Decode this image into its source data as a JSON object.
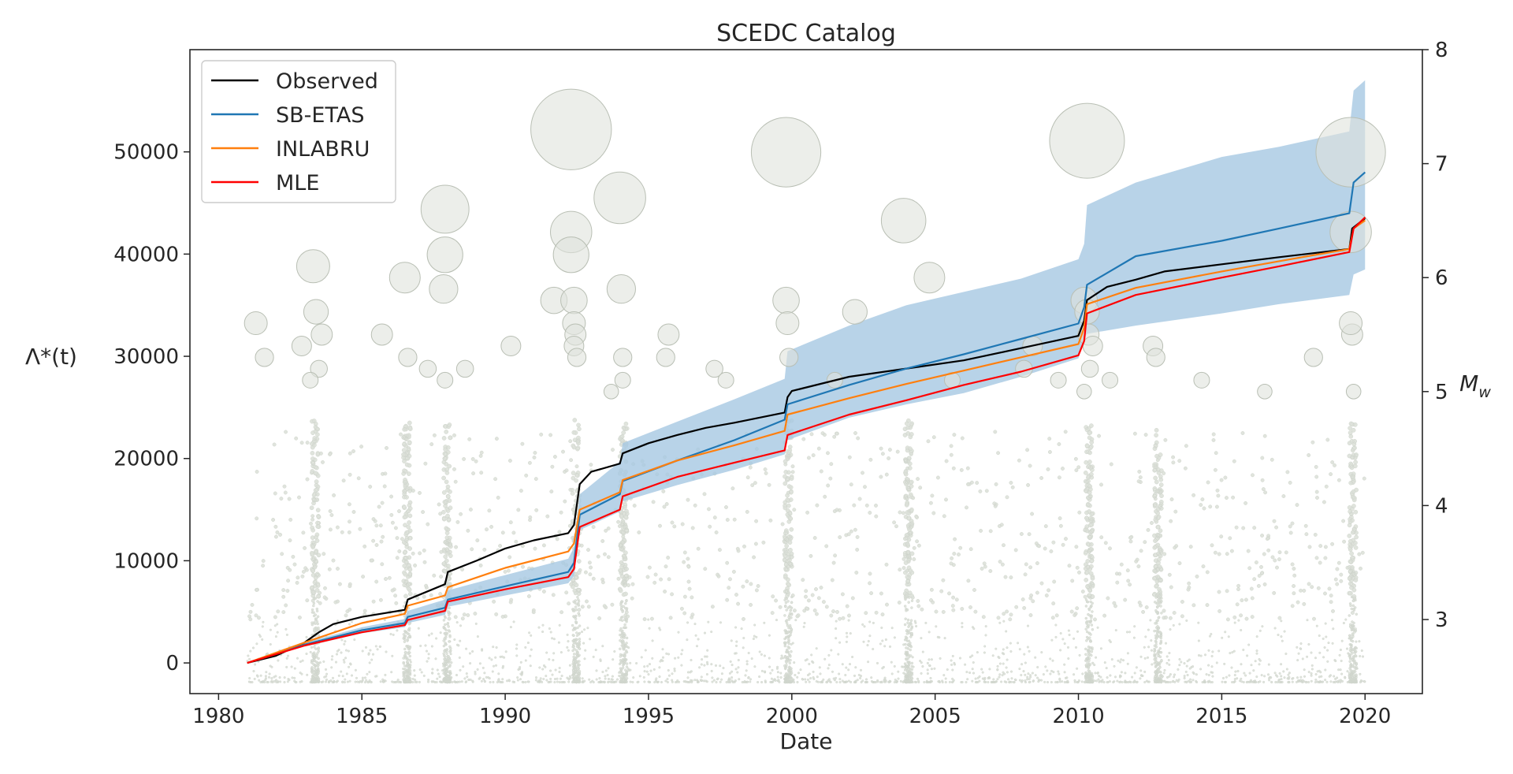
{
  "chart_data": {
    "type": "line",
    "title": "SCEDC Catalog",
    "xlabel": "Date",
    "ylabel": "Λ*(t)",
    "y2label": "M_w",
    "xlim": [
      1979.0,
      2022.0
    ],
    "ylim": [
      -3000,
      60000
    ],
    "y2lim": [
      2.35,
      8.0
    ],
    "x_ticks": [
      1980,
      1985,
      1990,
      1995,
      2000,
      2005,
      2010,
      2015,
      2020
    ],
    "x_tick_labels": [
      "1980",
      "1985",
      "1990",
      "1995",
      "2000",
      "2005",
      "2010",
      "2015",
      "2020"
    ],
    "y_ticks": [
      0,
      10000,
      20000,
      30000,
      40000,
      50000
    ],
    "y_tick_labels": [
      "0",
      "10000",
      "20000",
      "30000",
      "40000",
      "50000"
    ],
    "y2_ticks": [
      3,
      4,
      5,
      6,
      7,
      8
    ],
    "y2_tick_labels": [
      "3",
      "4",
      "5",
      "6",
      "7",
      "8"
    ],
    "legend_position": "upper-left",
    "colors": {
      "observed": "#000000",
      "sbetas": "#1f77b4",
      "inlabru": "#ff7f0e",
      "mle": "#ff0000",
      "band": "#a6c8e2",
      "quake_fill": "#c8cfc2",
      "quake_stroke": "#a9b3a4"
    },
    "series": [
      {
        "name": "Observed",
        "key": "observed",
        "x": [
          1981.0,
          1982.0,
          1983.0,
          1983.5,
          1984.0,
          1985.0,
          1986.5,
          1986.6,
          1987.9,
          1988.0,
          1989.0,
          1990.0,
          1991.0,
          1992.2,
          1992.4,
          1992.6,
          1993.0,
          1994.0,
          1994.1,
          1995.0,
          1996.0,
          1997.0,
          1998.0,
          1999.75,
          1999.85,
          2000.0,
          2002.0,
          2004.0,
          2006.0,
          2008.0,
          2010.0,
          2010.2,
          2010.3,
          2011.0,
          2012.0,
          2013.0,
          2015.0,
          2017.0,
          2019.45,
          2019.55,
          2020.0
        ],
        "values": [
          0,
          700,
          2000,
          3000,
          3800,
          4500,
          5200,
          6200,
          7700,
          8900,
          10000,
          11200,
          12000,
          12700,
          13500,
          17500,
          18700,
          19500,
          20500,
          21500,
          22300,
          23000,
          23500,
          24500,
          26000,
          26600,
          28000,
          28800,
          29600,
          30800,
          32000,
          33500,
          35500,
          36800,
          37500,
          38300,
          39000,
          39700,
          40500,
          42500,
          43500
        ]
      },
      {
        "name": "SB-ETAS",
        "key": "sbetas",
        "x": [
          1981.0,
          1983.0,
          1985.0,
          1986.5,
          1986.6,
          1987.9,
          1988.0,
          1990.0,
          1992.2,
          1992.4,
          1992.6,
          1994.0,
          1994.1,
          1996.0,
          1998.0,
          1999.75,
          1999.85,
          2002.0,
          2004.0,
          2006.0,
          2008.0,
          2010.0,
          2010.2,
          2010.3,
          2012.0,
          2015.0,
          2017.0,
          2019.45,
          2019.6,
          2020.0
        ],
        "values": [
          0,
          1800,
          3200,
          3900,
          4500,
          5400,
          6200,
          7500,
          8900,
          9800,
          14500,
          16500,
          17800,
          19800,
          21800,
          23800,
          25300,
          27200,
          28800,
          30200,
          31700,
          33200,
          34800,
          37000,
          39800,
          41300,
          42500,
          44000,
          47000,
          48000
        ]
      },
      {
        "name": "INLABRU",
        "key": "inlabru",
        "x": [
          1981.0,
          1983.0,
          1985.0,
          1986.5,
          1986.6,
          1987.9,
          1988.0,
          1990.0,
          1992.2,
          1992.4,
          1992.6,
          1994.0,
          1994.1,
          1996.0,
          1998.0,
          1999.75,
          1999.85,
          2002.0,
          2004.0,
          2006.0,
          2008.0,
          2010.0,
          2010.2,
          2010.3,
          2012.0,
          2015.0,
          2017.0,
          2019.45,
          2019.6,
          2020.0
        ],
        "values": [
          0,
          2000,
          3900,
          4800,
          5600,
          6600,
          7400,
          9300,
          10900,
          11700,
          15000,
          16700,
          17900,
          19800,
          21300,
          22700,
          24300,
          25900,
          27300,
          28600,
          29900,
          31200,
          32800,
          35100,
          36700,
          38300,
          39300,
          40500,
          42500,
          43300
        ]
      },
      {
        "name": "MLE",
        "key": "mle",
        "x": [
          1981.0,
          1983.0,
          1985.0,
          1986.5,
          1986.6,
          1987.9,
          1988.0,
          1990.0,
          1992.2,
          1992.4,
          1992.6,
          1994.0,
          1994.1,
          1996.0,
          1998.0,
          1999.75,
          1999.85,
          2002.0,
          2004.0,
          2006.0,
          2008.0,
          2010.0,
          2010.2,
          2010.3,
          2012.0,
          2015.0,
          2017.0,
          2019.45,
          2019.6,
          2020.0
        ],
        "values": [
          0,
          1700,
          3000,
          3700,
          4200,
          5100,
          6000,
          7200,
          8400,
          9200,
          13300,
          15000,
          16300,
          18200,
          19600,
          20800,
          22300,
          24300,
          25700,
          27200,
          28500,
          30100,
          31500,
          34200,
          36000,
          37700,
          38800,
          40200,
          42500,
          43600
        ]
      }
    ],
    "band": {
      "name": "SB-ETAS interval",
      "x": [
        1981.0,
        1983.0,
        1985.0,
        1986.5,
        1986.6,
        1987.9,
        1988.0,
        1990.0,
        1992.2,
        1992.4,
        1992.6,
        1994.0,
        1994.1,
        1996.0,
        1998.0,
        1999.75,
        1999.85,
        2002.0,
        2004.0,
        2006.0,
        2008.0,
        2010.0,
        2010.2,
        2010.3,
        2012.0,
        2015.0,
        2017.0,
        2019.45,
        2019.6,
        2020.0
      ],
      "upper": [
        0,
        2000,
        3500,
        4300,
        5100,
        6200,
        7100,
        8600,
        10200,
        11300,
        16500,
        19700,
        21500,
        23600,
        25800,
        27800,
        30500,
        33000,
        35000,
        36300,
        37600,
        39500,
        41000,
        44800,
        47000,
        49500,
        50500,
        52000,
        56000,
        57000
      ],
      "lower": [
        0,
        1600,
        2900,
        3500,
        3900,
        4700,
        5500,
        6600,
        7800,
        8500,
        13000,
        14800,
        15800,
        17400,
        18900,
        20400,
        21800,
        24000,
        25300,
        26400,
        28000,
        29800,
        31800,
        32200,
        33000,
        34200,
        35100,
        36000,
        38000,
        38500
      ]
    },
    "large_quakes": [
      {
        "year": 1981.3,
        "mag": 5.6
      },
      {
        "year": 1981.6,
        "mag": 5.3
      },
      {
        "year": 1982.9,
        "mag": 5.4
      },
      {
        "year": 1983.3,
        "mag": 6.1
      },
      {
        "year": 1983.4,
        "mag": 5.7
      },
      {
        "year": 1983.5,
        "mag": 5.2
      },
      {
        "year": 1983.2,
        "mag": 5.1
      },
      {
        "year": 1983.6,
        "mag": 5.5
      },
      {
        "year": 1985.7,
        "mag": 5.5
      },
      {
        "year": 1986.5,
        "mag": 6.0
      },
      {
        "year": 1986.6,
        "mag": 5.3
      },
      {
        "year": 1987.3,
        "mag": 5.2
      },
      {
        "year": 1987.9,
        "mag": 6.2
      },
      {
        "year": 1987.9,
        "mag": 6.6
      },
      {
        "year": 1987.85,
        "mag": 5.9
      },
      {
        "year": 1987.9,
        "mag": 5.1
      },
      {
        "year": 1988.6,
        "mag": 5.2
      },
      {
        "year": 1990.2,
        "mag": 5.4
      },
      {
        "year": 1991.7,
        "mag": 5.8
      },
      {
        "year": 1992.3,
        "mag": 7.3
      },
      {
        "year": 1992.3,
        "mag": 6.4
      },
      {
        "year": 1992.3,
        "mag": 6.2
      },
      {
        "year": 1992.4,
        "mag": 5.8
      },
      {
        "year": 1992.4,
        "mag": 5.6
      },
      {
        "year": 1992.45,
        "mag": 5.5
      },
      {
        "year": 1992.4,
        "mag": 5.4
      },
      {
        "year": 1992.5,
        "mag": 5.3
      },
      {
        "year": 1993.7,
        "mag": 5.0
      },
      {
        "year": 1994.0,
        "mag": 6.7
      },
      {
        "year": 1994.05,
        "mag": 5.9
      },
      {
        "year": 1994.1,
        "mag": 5.3
      },
      {
        "year": 1994.1,
        "mag": 5.1
      },
      {
        "year": 1995.7,
        "mag": 5.5
      },
      {
        "year": 1995.6,
        "mag": 5.3
      },
      {
        "year": 1997.3,
        "mag": 5.2
      },
      {
        "year": 1997.7,
        "mag": 5.1
      },
      {
        "year": 1999.8,
        "mag": 7.1
      },
      {
        "year": 1999.8,
        "mag": 5.8
      },
      {
        "year": 1999.85,
        "mag": 5.6
      },
      {
        "year": 1999.9,
        "mag": 5.3
      },
      {
        "year": 2001.5,
        "mag": 5.1
      },
      {
        "year": 2002.2,
        "mag": 5.7
      },
      {
        "year": 2003.9,
        "mag": 6.5
      },
      {
        "year": 2004.8,
        "mag": 6.0
      },
      {
        "year": 2005.6,
        "mag": 5.1
      },
      {
        "year": 2008.4,
        "mag": 5.4
      },
      {
        "year": 2008.1,
        "mag": 5.2
      },
      {
        "year": 2009.3,
        "mag": 5.1
      },
      {
        "year": 2010.3,
        "mag": 7.2
      },
      {
        "year": 2010.2,
        "mag": 5.8
      },
      {
        "year": 2010.3,
        "mag": 5.7
      },
      {
        "year": 2010.35,
        "mag": 5.5
      },
      {
        "year": 2010.4,
        "mag": 5.2
      },
      {
        "year": 2010.2,
        "mag": 5.0
      },
      {
        "year": 2010.5,
        "mag": 5.4
      },
      {
        "year": 2011.1,
        "mag": 5.1
      },
      {
        "year": 2012.6,
        "mag": 5.4
      },
      {
        "year": 2012.7,
        "mag": 5.3
      },
      {
        "year": 2014.3,
        "mag": 5.1
      },
      {
        "year": 2016.5,
        "mag": 5.0
      },
      {
        "year": 2018.2,
        "mag": 5.3
      },
      {
        "year": 2019.5,
        "mag": 7.1
      },
      {
        "year": 2019.5,
        "mag": 6.4
      },
      {
        "year": 2019.55,
        "mag": 5.5
      },
      {
        "year": 2019.5,
        "mag": 5.6
      },
      {
        "year": 2019.6,
        "mag": 5.0
      }
    ]
  }
}
